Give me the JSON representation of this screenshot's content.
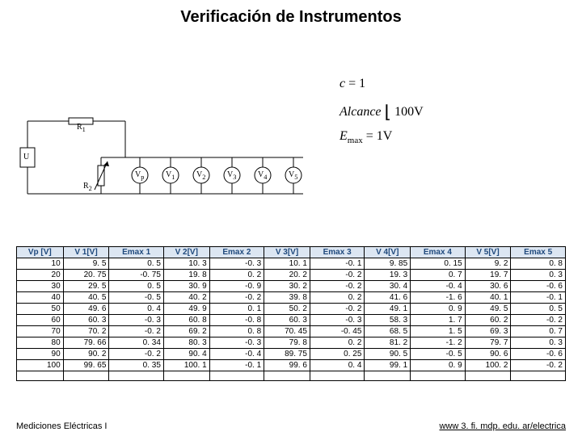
{
  "title": "Verificación de Instrumentos",
  "circuit": {
    "source_label": "U",
    "R1": "R",
    "R1_sub": "1",
    "R2": "R",
    "R2_sub": "2",
    "meters": [
      {
        "label": "V",
        "sub": "p"
      },
      {
        "label": "V",
        "sub": "1"
      },
      {
        "label": "V",
        "sub": "2"
      },
      {
        "label": "V",
        "sub": "3"
      },
      {
        "label": "V",
        "sub": "4"
      },
      {
        "label": "V",
        "sub": "5"
      }
    ]
  },
  "formulas": {
    "line1_lhs": "c",
    "line1_rhs": "1",
    "line2_lhs": "Alcance",
    "line2_rhs": "100V",
    "line3_lhs": "E",
    "line3_sub": "max",
    "line3_rhs": "1V"
  },
  "table": {
    "background_header": "#dce6f2",
    "header_text_color": "#1f497d",
    "columns": [
      "Vp [V]",
      "V 1[V]",
      "Emax 1",
      "V 2[V]",
      "Emax 2",
      "V 3[V]",
      "Emax 3",
      "V 4[V]",
      "Emax 4",
      "V 5[V]",
      "Emax 5"
    ],
    "rows": [
      [
        "10",
        "9. 5",
        "0. 5",
        "10. 3",
        "-0. 3",
        "10. 1",
        "-0. 1",
        "9. 85",
        "0. 15",
        "9. 2",
        "0. 8"
      ],
      [
        "20",
        "20. 75",
        "-0. 75",
        "19. 8",
        "0. 2",
        "20. 2",
        "-0. 2",
        "19. 3",
        "0. 7",
        "19. 7",
        "0. 3"
      ],
      [
        "30",
        "29. 5",
        "0. 5",
        "30. 9",
        "-0. 9",
        "30. 2",
        "-0. 2",
        "30. 4",
        "-0. 4",
        "30. 6",
        "-0. 6"
      ],
      [
        "40",
        "40. 5",
        "-0. 5",
        "40. 2",
        "-0. 2",
        "39. 8",
        "0. 2",
        "41. 6",
        "-1. 6",
        "40. 1",
        "-0. 1"
      ],
      [
        "50",
        "49. 6",
        "0. 4",
        "49. 9",
        "0. 1",
        "50. 2",
        "-0. 2",
        "49. 1",
        "0. 9",
        "49. 5",
        "0. 5"
      ],
      [
        "60",
        "60. 3",
        "-0. 3",
        "60. 8",
        "-0. 8",
        "60. 3",
        "-0. 3",
        "58. 3",
        "1. 7",
        "60. 2",
        "-0. 2"
      ],
      [
        "70",
        "70. 2",
        "-0. 2",
        "69. 2",
        "0. 8",
        "70. 45",
        "-0. 45",
        "68. 5",
        "1. 5",
        "69. 3",
        "0. 7"
      ],
      [
        "80",
        "79. 66",
        "0. 34",
        "80. 3",
        "-0. 3",
        "79. 8",
        "0. 2",
        "81. 2",
        "-1. 2",
        "79. 7",
        "0. 3"
      ],
      [
        "90",
        "90. 2",
        "-0. 2",
        "90. 4",
        "-0. 4",
        "89. 75",
        "0. 25",
        "90. 5",
        "-0. 5",
        "90. 6",
        "-0. 6"
      ],
      [
        "100",
        "99. 65",
        "0. 35",
        "100. 1",
        "-0. 1",
        "99. 6",
        "0. 4",
        "99. 1",
        "0. 9",
        "100. 2",
        "-0. 2"
      ]
    ]
  },
  "footer": {
    "left": "Mediciones Eléctricas I",
    "right": "www 3. fi. mdp. edu. ar/electrica"
  }
}
